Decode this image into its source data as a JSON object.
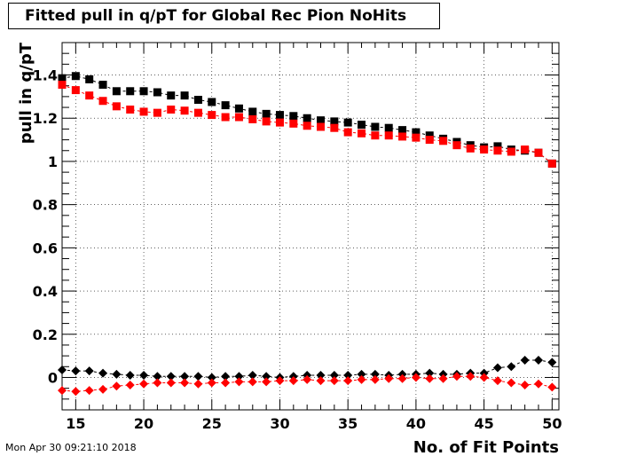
{
  "chart_data": {
    "type": "scatter",
    "title": "Fitted pull in q/pT for Global Rec Pion NoHits",
    "xlabel": "No. of Fit Points",
    "ylabel": "pull in q/pT",
    "xlim": [
      14,
      50.5
    ],
    "ylim": [
      -0.15,
      1.55
    ],
    "xticks": [
      "15",
      "20",
      "25",
      "30",
      "35",
      "40",
      "45",
      "50"
    ],
    "yticks": [
      "0",
      "0.2",
      "0.4",
      "0.6",
      "0.8",
      "1",
      "1.2",
      "1.4"
    ],
    "grid": true,
    "x": [
      14,
      15,
      16,
      17,
      18,
      19,
      20,
      21,
      22,
      23,
      24,
      25,
      26,
      27,
      28,
      29,
      30,
      31,
      32,
      33,
      34,
      35,
      36,
      37,
      38,
      39,
      40,
      41,
      42,
      43,
      44,
      45,
      46,
      47,
      48,
      49,
      50
    ],
    "series": [
      {
        "marker": "square",
        "color": "#000000",
        "values": [
          1.385,
          1.395,
          1.38,
          1.355,
          1.325,
          1.325,
          1.325,
          1.32,
          1.305,
          1.305,
          1.285,
          1.275,
          1.26,
          1.245,
          1.23,
          1.22,
          1.215,
          1.21,
          1.2,
          1.19,
          1.185,
          1.18,
          1.17,
          1.16,
          1.155,
          1.145,
          1.135,
          1.12,
          1.105,
          1.09,
          1.075,
          1.065,
          1.07,
          1.055,
          1.05,
          1.04,
          0.99
        ]
      },
      {
        "marker": "square",
        "color": "#ff0000",
        "values": [
          1.355,
          1.33,
          1.305,
          1.28,
          1.255,
          1.24,
          1.23,
          1.225,
          1.24,
          1.235,
          1.225,
          1.215,
          1.205,
          1.205,
          1.195,
          1.185,
          1.18,
          1.175,
          1.165,
          1.16,
          1.155,
          1.135,
          1.13,
          1.12,
          1.12,
          1.115,
          1.11,
          1.1,
          1.095,
          1.075,
          1.06,
          1.055,
          1.05,
          1.045,
          1.055,
          1.04,
          0.99
        ]
      },
      {
        "marker": "diamond",
        "color": "#000000",
        "values": [
          0.035,
          0.03,
          0.03,
          0.02,
          0.015,
          0.01,
          0.01,
          0.005,
          0.005,
          0.005,
          0.005,
          0.0,
          0.005,
          0.005,
          0.01,
          0.005,
          0.0,
          0.005,
          0.01,
          0.01,
          0.01,
          0.01,
          0.015,
          0.015,
          0.01,
          0.015,
          0.015,
          0.02,
          0.015,
          0.015,
          0.02,
          0.02,
          0.045,
          0.05,
          0.08,
          0.08,
          0.07
        ]
      },
      {
        "marker": "diamond",
        "color": "#ff0000",
        "values": [
          -0.06,
          -0.065,
          -0.06,
          -0.055,
          -0.04,
          -0.035,
          -0.03,
          -0.025,
          -0.025,
          -0.025,
          -0.03,
          -0.025,
          -0.025,
          -0.02,
          -0.02,
          -0.02,
          -0.015,
          -0.015,
          -0.01,
          -0.015,
          -0.015,
          -0.015,
          -0.01,
          -0.01,
          -0.005,
          -0.005,
          0.0,
          -0.005,
          -0.005,
          0.005,
          0.005,
          0.0,
          -0.015,
          -0.025,
          -0.035,
          -0.03,
          -0.045
        ]
      }
    ]
  },
  "timestamp": "Mon Apr 30 09:21:10 2018"
}
